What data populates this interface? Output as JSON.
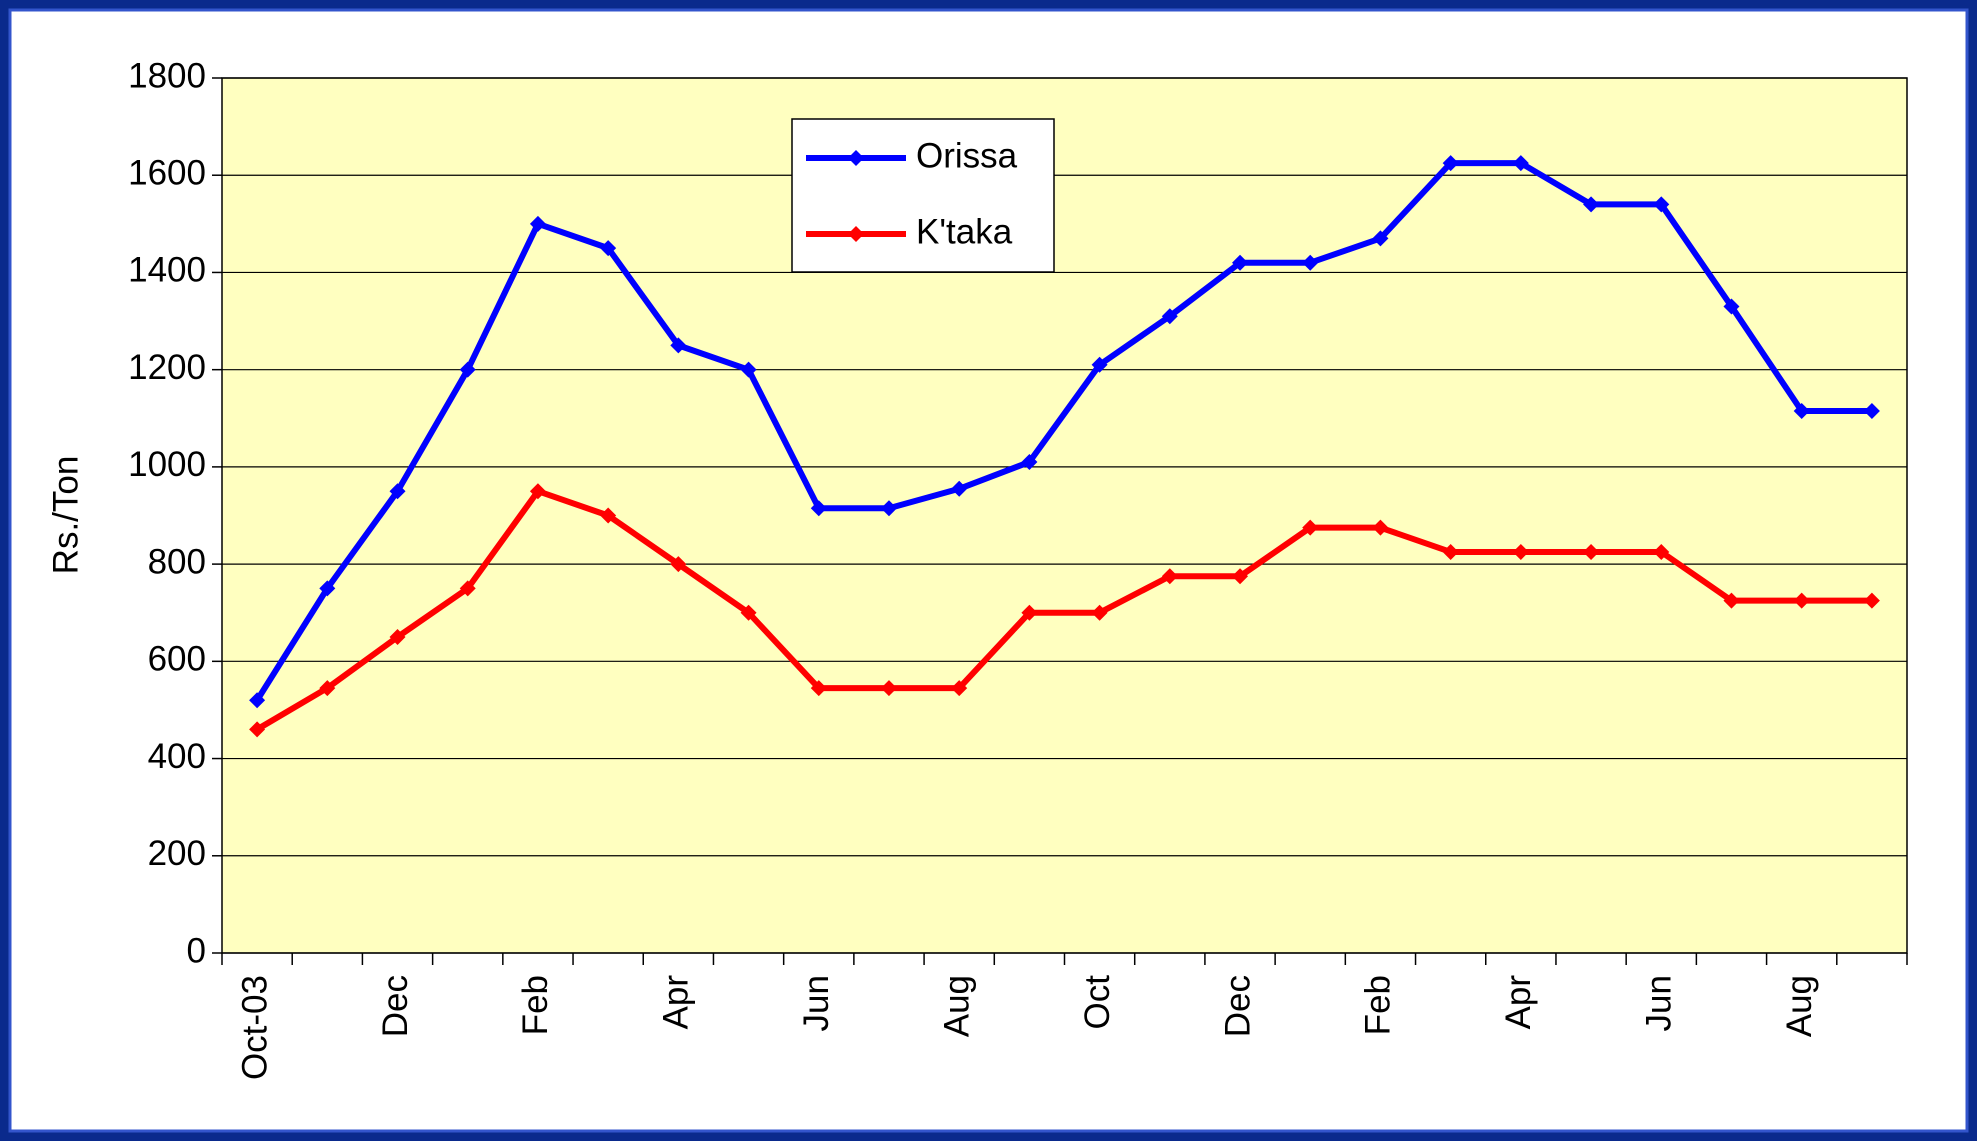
{
  "chart_data": {
    "type": "line",
    "ylabel": "Rs./Ton",
    "categories": [
      "Oct-03",
      null,
      "Dec",
      null,
      "Feb",
      null,
      "Apr",
      null,
      "Jun",
      null,
      "Aug",
      null,
      "Oct",
      null,
      "Dec",
      null,
      "Feb",
      null,
      "Apr",
      null,
      "Jun",
      null,
      "Aug",
      null
    ],
    "series": [
      {
        "name": "Orissa",
        "color": "#0000ff",
        "values": [
          520,
          750,
          950,
          1200,
          1500,
          1450,
          1250,
          1200,
          915,
          915,
          955,
          1010,
          1210,
          1310,
          1420,
          1420,
          1470,
          1625,
          1625,
          1540,
          1540,
          1330,
          1115,
          1115
        ]
      },
      {
        "name": "K'taka",
        "color": "#ff0000",
        "values": [
          460,
          545,
          650,
          750,
          950,
          900,
          800,
          700,
          545,
          545,
          545,
          700,
          700,
          775,
          775,
          875,
          875,
          825,
          825,
          825,
          825,
          725,
          725,
          725
        ]
      }
    ],
    "ylim": [
      0,
      1800
    ],
    "yticks": [
      0,
      200,
      400,
      600,
      800,
      1000,
      1200,
      1400,
      1600,
      1800
    ],
    "grid": true,
    "background": "#ffffc0"
  }
}
